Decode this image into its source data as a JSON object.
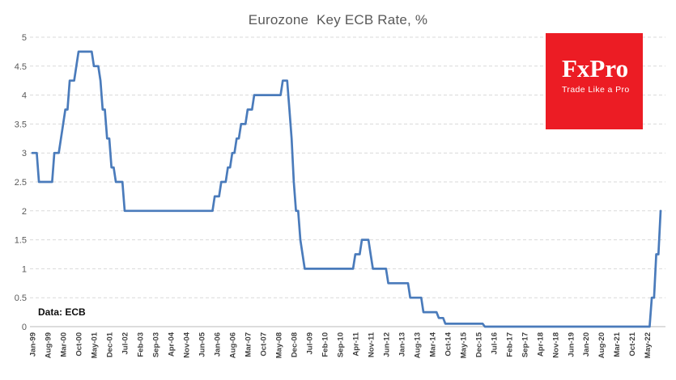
{
  "source_note": "Data: ECB",
  "logo": {
    "brand": "FxPro",
    "tagline": "Trade Like a Pro",
    "bg_color": "#EC1C24",
    "text_color": "#FFFFFF"
  },
  "chart_data": {
    "type": "line",
    "title": "Eurozone  Key ECB Rate, %",
    "xlabel": "",
    "ylabel": "",
    "ylim": [
      0,
      5
    ],
    "y_ticks": [
      "0",
      "0.5",
      "1",
      "1.5",
      "2",
      "2.5",
      "3",
      "3.5",
      "4",
      "4.5",
      "5"
    ],
    "grid": "horizontal-dashed",
    "legend": "none",
    "line_color": "#4A7BBB",
    "gridline_color": "#D9D9D9",
    "axis_line_color": "#C6C6C6",
    "y_label_color": "#595959",
    "x_label_color": "#3F3F3F",
    "x_tick_interval_months": 7,
    "x_tick_labels": [
      "Jan-99",
      "Aug-99",
      "Mar-00",
      "Oct-00",
      "May-01",
      "Dec-01",
      "Jul-02",
      "Feb-03",
      "Sep-03",
      "Apr-04",
      "Nov-04",
      "Jun-05",
      "Jan-06",
      "Aug-06",
      "Mar-07",
      "Oct-07",
      "May-08",
      "Dec-08",
      "Jul-09",
      "Feb-10",
      "Sep-10",
      "Apr-11",
      "Nov-11",
      "Jun-12",
      "Jan-13",
      "Aug-13",
      "Mar-14",
      "Oct-14",
      "May-15",
      "Dec-15",
      "Jul-16",
      "Feb-17",
      "Sep-17",
      "Apr-18",
      "Nov-18",
      "Jun-19",
      "Jan-20",
      "Aug-20",
      "Mar-21",
      "Oct-21",
      "May-22"
    ],
    "series": [
      {
        "name": "Key ECB Rate",
        "start_month": "Jan-99",
        "end_month": "Nov-22",
        "end_m": 286,
        "changes": [
          {
            "date": "Jan-99",
            "m": 0,
            "rate": 3.0
          },
          {
            "date": "Apr-99",
            "m": 3,
            "rate": 2.5
          },
          {
            "date": "Nov-99",
            "m": 10,
            "rate": 3.0
          },
          {
            "date": "Feb-00",
            "m": 13,
            "rate": 3.25
          },
          {
            "date": "Mar-00",
            "m": 14,
            "rate": 3.5
          },
          {
            "date": "Apr-00",
            "m": 15,
            "rate": 3.75
          },
          {
            "date": "Jun-00",
            "m": 17,
            "rate": 4.25
          },
          {
            "date": "Sep-00",
            "m": 20,
            "rate": 4.5
          },
          {
            "date": "Oct-00",
            "m": 21,
            "rate": 4.75
          },
          {
            "date": "May-01",
            "m": 28,
            "rate": 4.5
          },
          {
            "date": "Aug-01",
            "m": 31,
            "rate": 4.25
          },
          {
            "date": "Sep-01",
            "m": 32,
            "rate": 3.75
          },
          {
            "date": "Nov-01",
            "m": 34,
            "rate": 3.25
          },
          {
            "date": "Jan-02",
            "m": 36,
            "rate": 2.75
          },
          {
            "date": "Mar-02",
            "m": 38,
            "rate": 2.5
          },
          {
            "date": "Jul-02",
            "m": 42,
            "rate": 2.0
          },
          {
            "date": "Dec-05",
            "m": 83,
            "rate": 2.25
          },
          {
            "date": "Mar-06",
            "m": 86,
            "rate": 2.5
          },
          {
            "date": "Jun-06",
            "m": 89,
            "rate": 2.75
          },
          {
            "date": "Aug-06",
            "m": 91,
            "rate": 3.0
          },
          {
            "date": "Oct-06",
            "m": 93,
            "rate": 3.25
          },
          {
            "date": "Dec-06",
            "m": 95,
            "rate": 3.5
          },
          {
            "date": "Mar-07",
            "m": 98,
            "rate": 3.75
          },
          {
            "date": "Jun-07",
            "m": 101,
            "rate": 4.0
          },
          {
            "date": "Jul-08",
            "m": 114,
            "rate": 4.25
          },
          {
            "date": "Oct-08",
            "m": 117,
            "rate": 3.75
          },
          {
            "date": "Nov-08",
            "m": 118,
            "rate": 3.25
          },
          {
            "date": "Dec-08",
            "m": 119,
            "rate": 2.5
          },
          {
            "date": "Jan-09",
            "m": 120,
            "rate": 2.0
          },
          {
            "date": "Mar-09",
            "m": 122,
            "rate": 1.5
          },
          {
            "date": "Apr-09",
            "m": 123,
            "rate": 1.25
          },
          {
            "date": "May-09",
            "m": 124,
            "rate": 1.0
          },
          {
            "date": "Apr-11",
            "m": 147,
            "rate": 1.25
          },
          {
            "date": "Jul-11",
            "m": 150,
            "rate": 1.5
          },
          {
            "date": "Nov-11",
            "m": 154,
            "rate": 1.25
          },
          {
            "date": "Dec-11",
            "m": 155,
            "rate": 1.0
          },
          {
            "date": "Jul-12",
            "m": 162,
            "rate": 0.75
          },
          {
            "date": "May-13",
            "m": 172,
            "rate": 0.5
          },
          {
            "date": "Nov-13",
            "m": 178,
            "rate": 0.25
          },
          {
            "date": "Jun-14",
            "m": 185,
            "rate": 0.15
          },
          {
            "date": "Sep-14",
            "m": 188,
            "rate": 0.05
          },
          {
            "date": "Mar-16",
            "m": 206,
            "rate": 0.0
          },
          {
            "date": "Jul-22",
            "m": 282,
            "rate": 0.5
          },
          {
            "date": "Sep-22",
            "m": 284,
            "rate": 1.25
          },
          {
            "date": "Nov-22",
            "m": 286,
            "rate": 2.0
          }
        ]
      }
    ]
  }
}
